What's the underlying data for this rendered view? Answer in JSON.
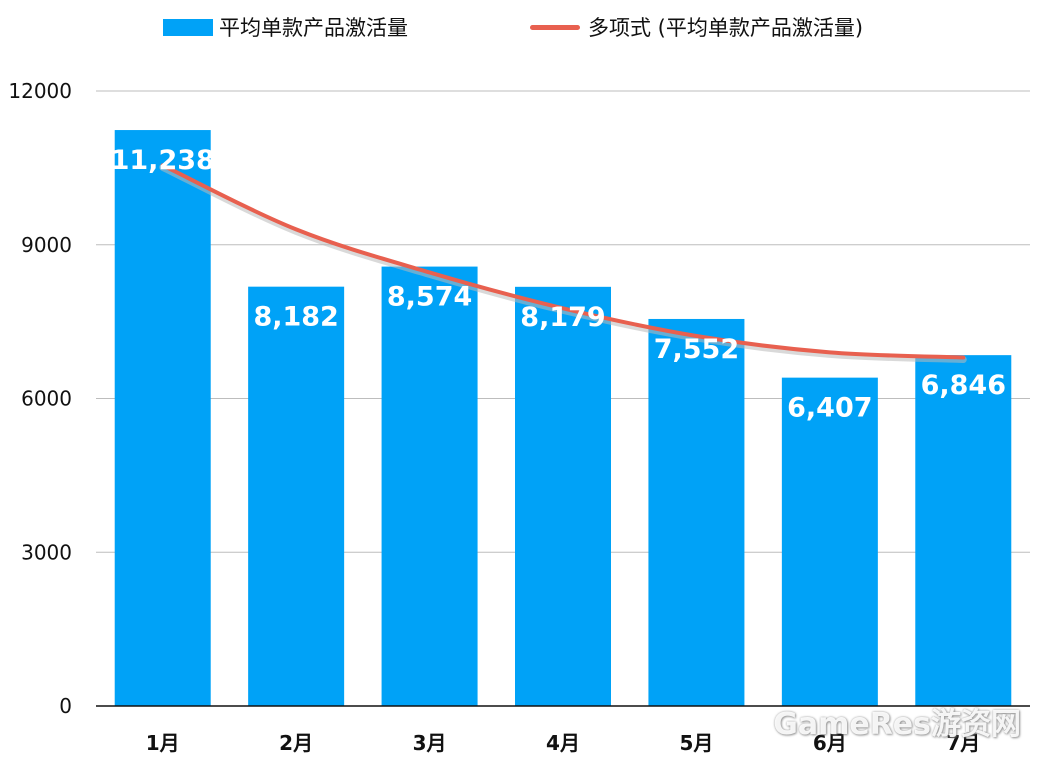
{
  "legend": {
    "bar_label": "平均单款产品激活量",
    "line_label": "多项式 (平均单款产品激活量)"
  },
  "watermark": "GameRes游资网",
  "colors": {
    "bar": "#00a2f7",
    "trend": "#e8604f",
    "grid": "#bdbdbd",
    "axis": "#111111"
  },
  "chart_data": {
    "type": "bar",
    "title": "",
    "xlabel": "",
    "ylabel": "",
    "categories": [
      "1月",
      "2月",
      "3月",
      "4月",
      "5月",
      "6月",
      "7月"
    ],
    "series": [
      {
        "name": "平均单款产品激活量",
        "values": [
          11238,
          8182,
          8574,
          8179,
          7552,
          6407,
          6846
        ],
        "data_labels": [
          "11,238",
          "8,182",
          "8,574",
          "8,179",
          "7,552",
          "6,407",
          "6,846"
        ]
      },
      {
        "name": "多项式 (平均单款产品激活量)",
        "type": "line",
        "values": [
          10550,
          9300,
          8460,
          7760,
          7220,
          6900,
          6800
        ]
      }
    ],
    "ylim": [
      0,
      12000
    ],
    "yticks": [
      0,
      3000,
      6000,
      9000,
      12000
    ],
    "ytick_labels": [
      "0",
      "3000",
      "6000",
      "9000",
      "12000"
    ],
    "grid": true,
    "legend_position": "top"
  }
}
